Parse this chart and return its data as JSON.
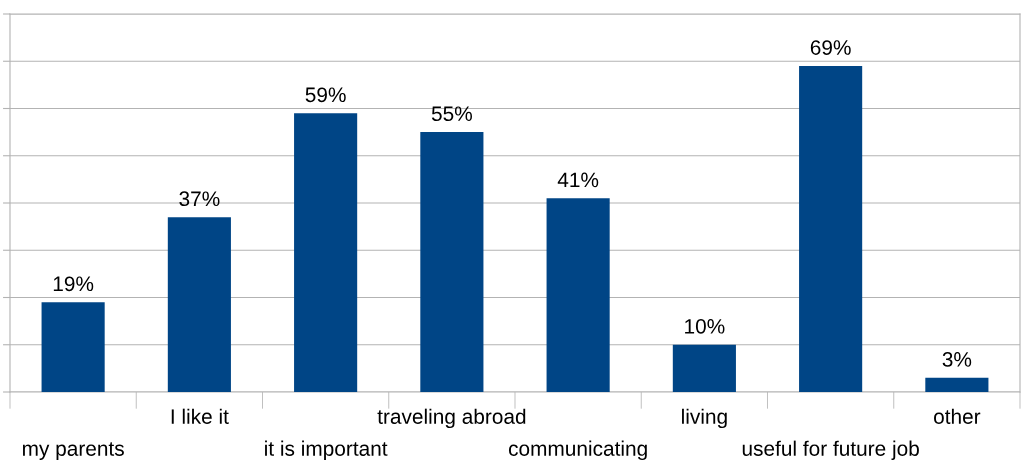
{
  "chart_data": {
    "type": "bar",
    "categories": [
      "my parents",
      "I like it",
      "it is important",
      "traveling abroad",
      "communicating",
      "living",
      "useful for future job",
      "other"
    ],
    "values": [
      19,
      37,
      59,
      55,
      41,
      10,
      69,
      3
    ],
    "value_labels": [
      "19%",
      "37%",
      "59%",
      "55%",
      "41%",
      "10%",
      "69%",
      "3%"
    ],
    "color": "#004586",
    "ylim": [
      0,
      80
    ],
    "yticks": [
      {
        "value": 0,
        "label": null
      },
      {
        "value": 10,
        "label": null
      },
      {
        "value": 20,
        "label": null
      },
      {
        "value": 30,
        "label": null
      },
      {
        "value": 40,
        "label": null
      },
      {
        "value": 50,
        "label": null
      },
      {
        "value": 60,
        "label": null
      },
      {
        "value": 70,
        "label": null
      },
      {
        "value": 80,
        "label": null
      }
    ],
    "grid": "y",
    "tick_labels": "x"
  }
}
